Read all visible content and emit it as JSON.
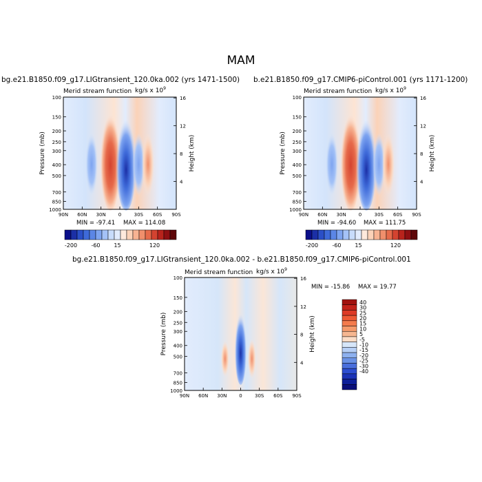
{
  "page": {
    "title": "MAM"
  },
  "panels": [
    {
      "id": "control-top-left",
      "run_title": "bg.e21.B1850.f09_g17.LIGtransient_120.0ka.002 (yrs 1471-1500)",
      "left_label": "Merid stream function",
      "right_label": "kg/s x 10",
      "right_label_sup": "9",
      "min_text": "MIN = -97.41",
      "max_text": "MAX = 114.08"
    },
    {
      "id": "control-top-right",
      "run_title": "b.e21.B1850.f09_g17.CMIP6-piControl.001 (yrs 1171-1200)",
      "left_label": "Merid stream function",
      "right_label": "kg/s x 10",
      "right_label_sup": "9",
      "min_text": "MIN = -94.60",
      "max_text": "MAX = 111.75"
    },
    {
      "id": "difference-bottom",
      "run_title": "bg.e21.B1850.f09_g17.LIGtransient_120.0ka.002 - b.e21.B1850.f09_g17.CMIP6-piControl.001",
      "left_label": "Merid stream function",
      "right_label": "kg/s x 10",
      "right_label_sup": "9",
      "min_text": "MIN = -15.86",
      "max_text": "MAX =  19.77"
    }
  ],
  "chart_data": [
    {
      "type": "heatmap",
      "title": "bg.e21.B1850.f09_g17.LIGtransient_120.0ka.002 (yrs 1471-1500)",
      "xlabel": "",
      "ylabel": "Pressure (mb)",
      "ylabel_right": "Height (km)",
      "x_ticks": [
        "90N",
        "60N",
        "30N",
        "0",
        "30S",
        "60S",
        "90S"
      ],
      "y_ticks": [
        "100",
        "150",
        "200",
        "250",
        "300",
        "400",
        "500",
        "700",
        "850",
        "1000"
      ],
      "y2_ticks": [
        "4",
        "8",
        "12",
        "16"
      ],
      "xlim": [
        90,
        -90
      ],
      "ylim": [
        1000,
        100
      ],
      "y_scale": "log",
      "min": -97.41,
      "max": 114.08,
      "cells": [
        {
          "lat": 15,
          "value": 110
        },
        {
          "lat": -10,
          "value": -95
        },
        {
          "lat": 45,
          "value": -20
        },
        {
          "lat": -30,
          "value": -40
        },
        {
          "lat": -45,
          "value": 45
        }
      ]
    },
    {
      "type": "heatmap",
      "title": "b.e21.B1850.f09_g17.CMIP6-piControl.001 (yrs 1171-1200)",
      "xlabel": "",
      "ylabel": "Pressure (mb)",
      "ylabel_right": "Height (km)",
      "x_ticks": [
        "90N",
        "60N",
        "30N",
        "0",
        "30S",
        "60S",
        "90S"
      ],
      "y_ticks": [
        "100",
        "150",
        "200",
        "250",
        "300",
        "400",
        "500",
        "700",
        "850",
        "1000"
      ],
      "y2_ticks": [
        "4",
        "8",
        "12",
        "16"
      ],
      "xlim": [
        90,
        -90
      ],
      "ylim": [
        1000,
        100
      ],
      "y_scale": "log",
      "min": -94.6,
      "max": 111.75,
      "cells": [
        {
          "lat": 15,
          "value": 108
        },
        {
          "lat": -10,
          "value": -92
        },
        {
          "lat": 45,
          "value": -20
        },
        {
          "lat": -30,
          "value": -40
        },
        {
          "lat": -45,
          "value": 45
        }
      ]
    },
    {
      "type": "heatmap",
      "title": "bg.e21.B1850.f09_g17.LIGtransient_120.0ka.002 - b.e21.B1850.f09_g17.CMIP6-piControl.001",
      "xlabel": "",
      "ylabel": "Pressure (mb)",
      "ylabel_right": "Height (km)",
      "x_ticks": [
        "90N",
        "60N",
        "30N",
        "0",
        "30S",
        "60S",
        "90S"
      ],
      "y_ticks": [
        "100",
        "150",
        "200",
        "250",
        "300",
        "400",
        "500",
        "700",
        "850",
        "1000"
      ],
      "y2_ticks": [
        "4",
        "8",
        "12",
        "16"
      ],
      "xlim": [
        90,
        -90
      ],
      "ylim": [
        1000,
        100
      ],
      "y_scale": "log",
      "min": -15.86,
      "max": 19.77,
      "cells": [
        {
          "lat": 0,
          "value": -15
        },
        {
          "lat": -18,
          "value": 8
        },
        {
          "lat": 25,
          "value": 3
        }
      ]
    }
  ],
  "colorbars": {
    "top_levels": [
      "-200",
      "-60",
      "15",
      "120"
    ],
    "top_colors": [
      "#0b0f8a",
      "#1b2fa6",
      "#2a4fc7",
      "#3e6ad9",
      "#5b86e6",
      "#7ea4f0",
      "#a4c2f7",
      "#c8dcfb",
      "#e2ecfd",
      "#fde9dc",
      "#fbd2b8",
      "#f7b392",
      "#f08f6c",
      "#e66a4a",
      "#d44330",
      "#b8231c",
      "#8e0f12",
      "#5e0608"
    ],
    "bottom_levels": [
      "40",
      "30",
      "25",
      "20",
      "15",
      "10",
      "5",
      "-5",
      "-10",
      "-15",
      "-20",
      "-25",
      "-30",
      "-40"
    ],
    "bottom_colors": [
      "#a1120f",
      "#c2221a",
      "#dd3a26",
      "#ee5a35",
      "#f47b4c",
      "#f59a6b",
      "#f6b791",
      "#fbdcc6",
      "#d6e6f9",
      "#b6cff6",
      "#8eb1ef",
      "#6b92e6",
      "#4a6fdc",
      "#2d4ed1",
      "#1b33b7",
      "#0d1f99",
      "#0a0f7a"
    ]
  },
  "colors": {
    "pos_light": "#fde4d3",
    "neg_light": "#d3e4fb",
    "background": "#ffffff"
  }
}
